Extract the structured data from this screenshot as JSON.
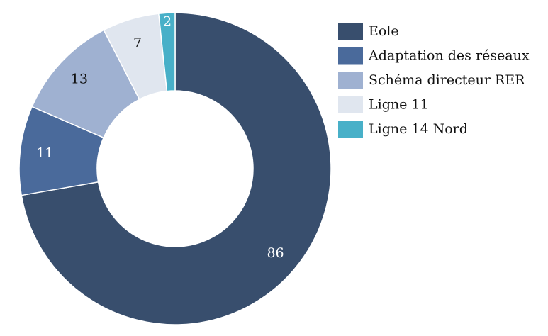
{
  "chart_data": {
    "type": "pie",
    "donut": true,
    "title": "",
    "legend_position": "top-right",
    "categories": [
      "Eole",
      "Adaptation des réseaux",
      "Schéma directeur RER",
      "Ligne 11",
      "Ligne 14 Nord"
    ],
    "values": [
      86,
      11,
      13,
      7,
      2
    ],
    "colors": [
      "#384e6d",
      "#4a6a9b",
      "#9fb1d1",
      "#e0e6ef",
      "#48b0c8"
    ],
    "label_colors": [
      "#ffffff",
      "#ffffff",
      "#111111",
      "#111111",
      "#ffffff"
    ],
    "start_angle_deg": 0,
    "direction": "clockwise"
  }
}
